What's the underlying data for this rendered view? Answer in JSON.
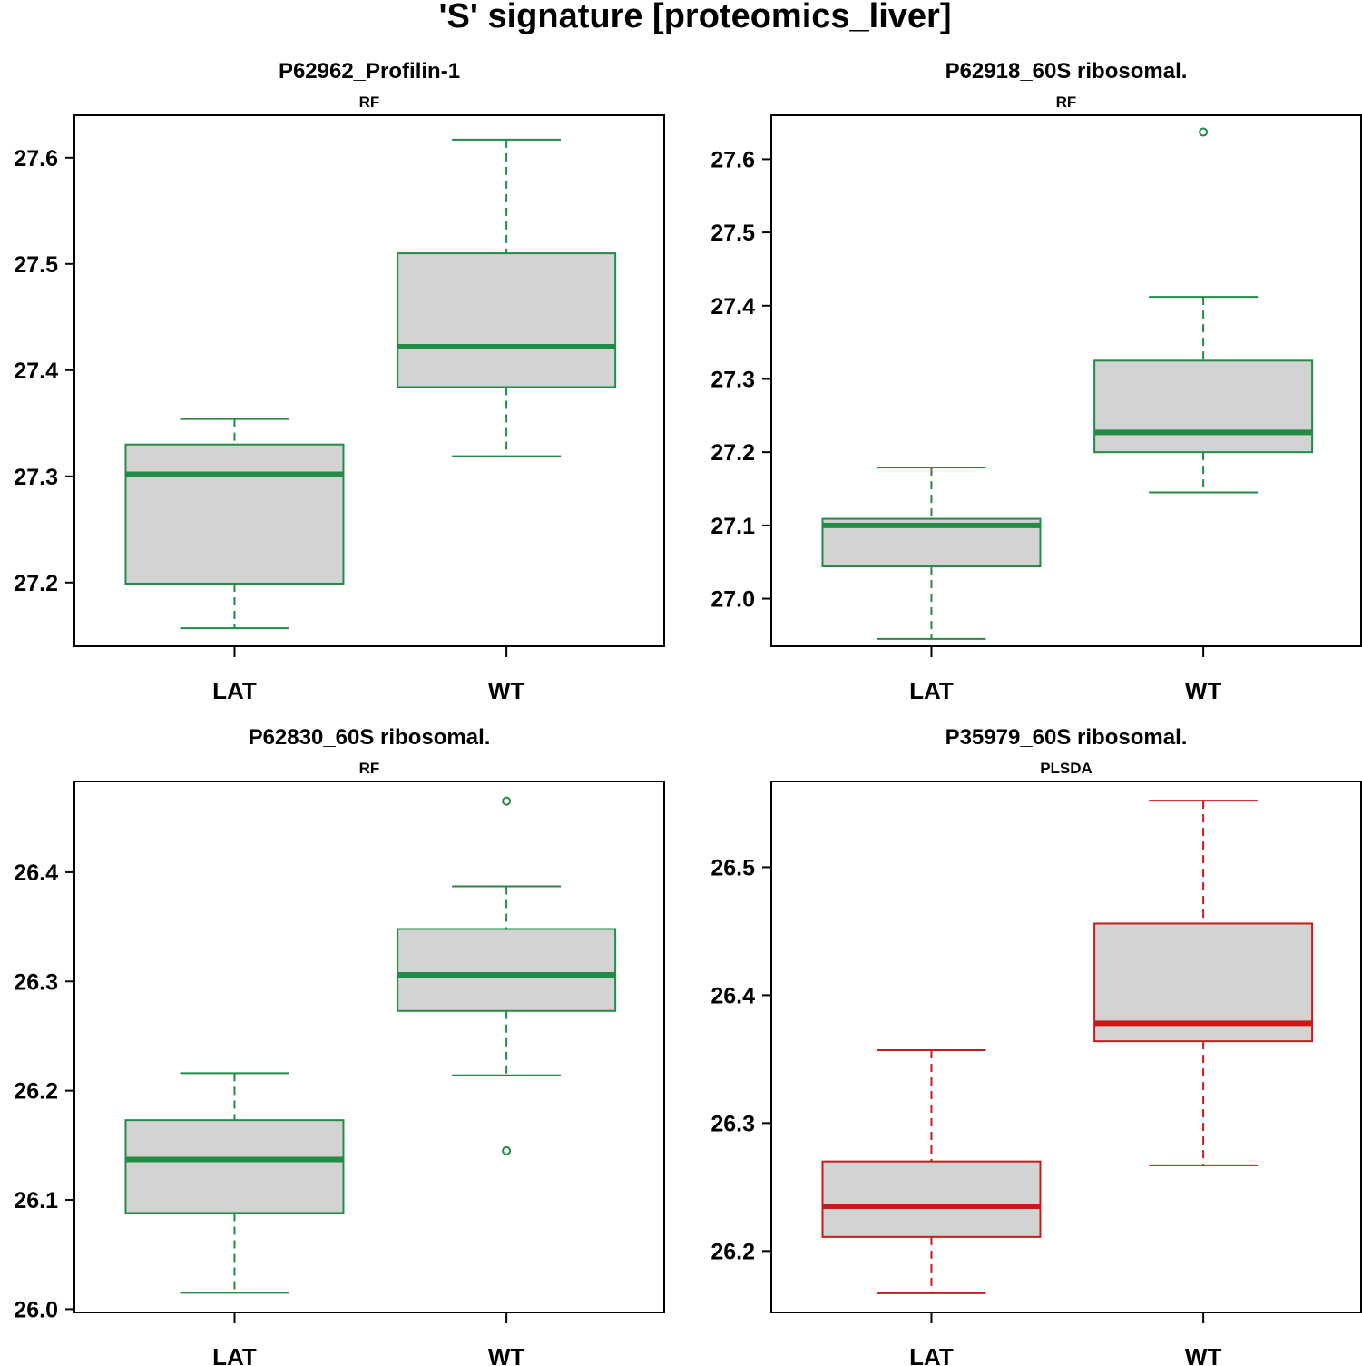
{
  "figure": {
    "title": "'S' signature [proteomics_liver]"
  },
  "chart_data": [
    {
      "type": "box",
      "title": "P62962_Profilin-1",
      "subtitle": "RF",
      "color": "#238B45",
      "categories": [
        "LAT",
        "WT"
      ],
      "ylim": [
        27.14,
        27.64
      ],
      "yticks": [
        "27.2",
        "27.3",
        "27.4",
        "27.5",
        "27.6"
      ],
      "boxes": [
        {
          "group": "LAT",
          "whisker_low": 27.157,
          "q1": 27.199,
          "median": 27.302,
          "q3": 27.33,
          "whisker_high": 27.354,
          "outliers": []
        },
        {
          "group": "WT",
          "whisker_low": 27.319,
          "q1": 27.384,
          "median": 27.422,
          "q3": 27.51,
          "whisker_high": 27.617,
          "outliers": []
        }
      ]
    },
    {
      "type": "box",
      "title": "P62918_60S ribosomal.",
      "subtitle": "RF",
      "color": "#238B45",
      "categories": [
        "LAT",
        "WT"
      ],
      "ylim": [
        26.935,
        27.66
      ],
      "yticks": [
        "27.0",
        "27.1",
        "27.2",
        "27.3",
        "27.4",
        "27.5",
        "27.6"
      ],
      "boxes": [
        {
          "group": "LAT",
          "whisker_low": 26.945,
          "q1": 27.044,
          "median": 27.1,
          "q3": 27.109,
          "whisker_high": 27.179,
          "outliers": []
        },
        {
          "group": "WT",
          "whisker_low": 27.145,
          "q1": 27.2,
          "median": 27.227,
          "q3": 27.325,
          "whisker_high": 27.412,
          "outliers": [
            27.637
          ]
        }
      ]
    },
    {
      "type": "box",
      "title": "P62830_60S ribosomal.",
      "subtitle": "RF",
      "color": "#238B45",
      "categories": [
        "LAT",
        "WT"
      ],
      "ylim": [
        25.997,
        26.483
      ],
      "yticks": [
        "26.0",
        "26.1",
        "26.2",
        "26.3",
        "26.4"
      ],
      "boxes": [
        {
          "group": "LAT",
          "whisker_low": 26.015,
          "q1": 26.088,
          "median": 26.137,
          "q3": 26.173,
          "whisker_high": 26.216,
          "outliers": []
        },
        {
          "group": "WT",
          "whisker_low": 26.214,
          "q1": 26.273,
          "median": 26.306,
          "q3": 26.348,
          "whisker_high": 26.387,
          "outliers": [
            26.465,
            26.145
          ]
        }
      ]
    },
    {
      "type": "box",
      "title": "P35979_60S ribosomal.",
      "subtitle": "PLSDA",
      "color": "#C8191B",
      "categories": [
        "LAT",
        "WT"
      ],
      "ylim": [
        26.152,
        26.567
      ],
      "yticks": [
        "26.2",
        "26.3",
        "26.4",
        "26.5"
      ],
      "boxes": [
        {
          "group": "LAT",
          "whisker_low": 26.167,
          "q1": 26.211,
          "median": 26.235,
          "q3": 26.27,
          "whisker_high": 26.357,
          "outliers": []
        },
        {
          "group": "WT",
          "whisker_low": 26.267,
          "q1": 26.364,
          "median": 26.378,
          "q3": 26.456,
          "whisker_high": 26.552,
          "outliers": []
        }
      ]
    }
  ]
}
